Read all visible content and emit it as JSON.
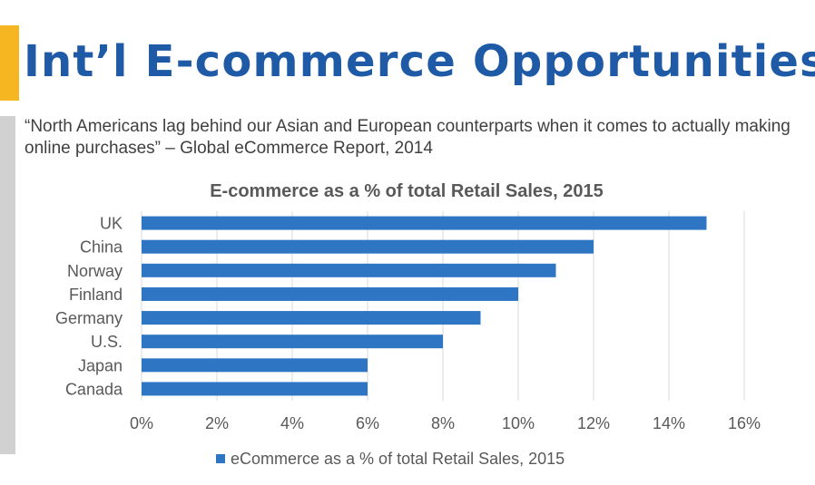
{
  "slide": {
    "title": "Int’l E-commerce Opportunities",
    "quote": "“North Americans lag behind our Asian and European counterparts when it comes to actually making online purchases” – Global eCommerce Report, 2014"
  },
  "colors": {
    "title": "#1f5aa6",
    "accent": "#f6b622",
    "side_rule": "#d1d1d1",
    "bar": "#2e75c4",
    "grid": "#d9d9d9",
    "text": "#595959"
  },
  "chart_data": {
    "type": "bar",
    "orientation": "horizontal",
    "title": "E-commerce as a % of total Retail Sales, 2015",
    "categories": [
      "UK",
      "China",
      "Norway",
      "Finland",
      "Germany",
      "U.S.",
      "Japan",
      "Canada"
    ],
    "series": [
      {
        "name": "eCommerce as a % of total Retail Sales, 2015",
        "values": [
          15,
          12,
          11,
          10,
          9,
          8,
          6,
          6
        ]
      }
    ],
    "xlim": [
      0,
      16
    ],
    "xticks": [
      0,
      2,
      4,
      6,
      8,
      10,
      12,
      14,
      16
    ],
    "xtick_labels": [
      "0%",
      "2%",
      "4%",
      "6%",
      "8%",
      "10%",
      "12%",
      "14%",
      "16%"
    ],
    "grid": true,
    "legend": "bottom"
  }
}
